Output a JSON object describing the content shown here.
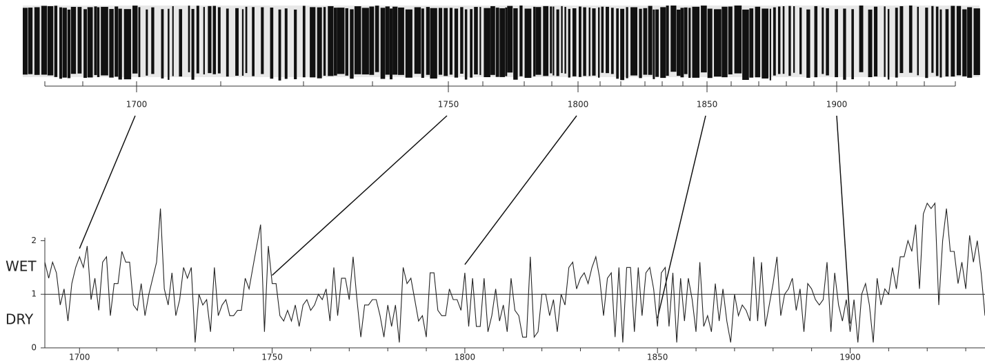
{
  "chart_data": {
    "type": "line",
    "ring_scale_labels": [
      1700,
      1750,
      1800,
      1850,
      1900
    ],
    "annotations": [
      "WET",
      "DRY"
    ],
    "x": [
      1691,
      1692,
      1693,
      1694,
      1695,
      1696,
      1697,
      1698,
      1699,
      1700,
      1701,
      1702,
      1703,
      1704,
      1705,
      1706,
      1707,
      1708,
      1709,
      1710,
      1711,
      1712,
      1713,
      1714,
      1715,
      1716,
      1717,
      1718,
      1719,
      1720,
      1721,
      1722,
      1723,
      1724,
      1725,
      1726,
      1727,
      1728,
      1729,
      1730,
      1731,
      1732,
      1733,
      1734,
      1735,
      1736,
      1737,
      1738,
      1739,
      1740,
      1741,
      1742,
      1743,
      1744,
      1745,
      1746,
      1747,
      1748,
      1749,
      1750,
      1751,
      1752,
      1753,
      1754,
      1755,
      1756,
      1757,
      1758,
      1759,
      1760,
      1761,
      1762,
      1763,
      1764,
      1765,
      1766,
      1767,
      1768,
      1769,
      1770,
      1771,
      1772,
      1773,
      1774,
      1775,
      1776,
      1777,
      1778,
      1779,
      1780,
      1781,
      1782,
      1783,
      1784,
      1785,
      1786,
      1787,
      1788,
      1789,
      1790,
      1791,
      1792,
      1793,
      1794,
      1795,
      1796,
      1797,
      1798,
      1799,
      1800,
      1801,
      1802,
      1803,
      1804,
      1805,
      1806,
      1807,
      1808,
      1809,
      1810,
      1811,
      1812,
      1813,
      1814,
      1815,
      1816,
      1817,
      1818,
      1819,
      1820,
      1821,
      1822,
      1823,
      1824,
      1825,
      1826,
      1827,
      1828,
      1829,
      1830,
      1831,
      1832,
      1833,
      1834,
      1835,
      1836,
      1837,
      1838,
      1839,
      1840,
      1841,
      1842,
      1843,
      1844,
      1845,
      1846,
      1847,
      1848,
      1849,
      1850,
      1851,
      1852,
      1853,
      1854,
      1855,
      1856,
      1857,
      1858,
      1859,
      1860,
      1861,
      1862,
      1863,
      1864,
      1865,
      1866,
      1867,
      1868,
      1869,
      1870,
      1871,
      1872,
      1873,
      1874,
      1875,
      1876,
      1877,
      1878,
      1879,
      1880,
      1881,
      1882,
      1883,
      1884,
      1885,
      1886,
      1887,
      1888,
      1889,
      1890,
      1891,
      1892,
      1893,
      1894,
      1895,
      1896,
      1897,
      1898,
      1899,
      1900,
      1901,
      1902,
      1903,
      1904,
      1905,
      1906,
      1907,
      1908,
      1909,
      1910,
      1911,
      1912,
      1913,
      1914,
      1915,
      1916,
      1917,
      1918,
      1919,
      1920,
      1921,
      1922,
      1923,
      1924,
      1925,
      1926,
      1927,
      1928,
      1929,
      1930,
      1931,
      1932,
      1933,
      1934,
      1935
    ],
    "series": [
      {
        "color": "#222222",
        "values": [
          1.6,
          1.3,
          1.6,
          1.4,
          0.8,
          1.1,
          0.5,
          1.2,
          1.5,
          1.7,
          1.5,
          1.9,
          0.9,
          1.3,
          0.7,
          1.6,
          1.7,
          0.6,
          1.2,
          1.2,
          1.8,
          1.6,
          1.6,
          0.8,
          0.7,
          1.2,
          0.6,
          1.0,
          1.3,
          1.6,
          2.6,
          1.1,
          0.8,
          1.4,
          0.6,
          0.9,
          1.5,
          1.3,
          1.5,
          0.1,
          1.0,
          0.8,
          0.9,
          0.3,
          1.5,
          0.6,
          0.8,
          0.9,
          0.6,
          0.6,
          0.7,
          0.7,
          1.3,
          1.1,
          1.5,
          1.9,
          2.3,
          0.3,
          1.9,
          1.2,
          1.2,
          0.6,
          0.5,
          0.7,
          0.5,
          0.8,
          0.4,
          0.8,
          0.9,
          0.7,
          0.8,
          1.0,
          0.9,
          1.1,
          0.5,
          1.5,
          0.6,
          1.3,
          1.3,
          0.9,
          1.7,
          0.9,
          0.2,
          0.8,
          0.8,
          0.9,
          0.9,
          0.6,
          0.2,
          0.8,
          0.4,
          0.8,
          0.1,
          1.5,
          1.2,
          1.3,
          0.9,
          0.5,
          0.6,
          0.2,
          1.4,
          1.4,
          0.7,
          0.6,
          0.6,
          1.1,
          0.9,
          0.9,
          0.7,
          1.4,
          0.4,
          1.3,
          0.4,
          0.4,
          1.3,
          0.3,
          0.6,
          1.1,
          0.5,
          0.8,
          0.3,
          1.3,
          0.7,
          0.6,
          0.2,
          0.2,
          1.7,
          0.2,
          0.3,
          1.0,
          1.0,
          0.6,
          0.9,
          0.3,
          1.0,
          0.8,
          1.5,
          1.6,
          1.1,
          1.3,
          1.4,
          1.2,
          1.5,
          1.7,
          1.3,
          0.6,
          1.3,
          1.4,
          0.2,
          1.5,
          0.1,
          1.5,
          1.5,
          0.3,
          1.5,
          0.6,
          1.4,
          1.5,
          1.1,
          0.4,
          1.4,
          1.5,
          0.4,
          1.4,
          0.1,
          1.3,
          0.5,
          1.3,
          0.9,
          0.3,
          1.6,
          0.4,
          0.6,
          0.3,
          1.2,
          0.5,
          1.1,
          0.5,
          0.1,
          1.0,
          0.6,
          0.8,
          0.7,
          0.5,
          1.7,
          0.5,
          1.6,
          0.4,
          0.8,
          1.2,
          1.7,
          0.6,
          1.0,
          1.1,
          1.3,
          0.7,
          1.1,
          0.3,
          1.2,
          1.1,
          0.9,
          0.8,
          0.9,
          1.6,
          0.3,
          1.4,
          0.8,
          0.5,
          0.9,
          0.3,
          0.9,
          0.1,
          1.0,
          1.2,
          0.8,
          0.1,
          1.3,
          0.8,
          1.1,
          1.0,
          1.5,
          1.1,
          1.7,
          1.7,
          2.0,
          1.8,
          2.3,
          1.1,
          2.5,
          2.7,
          2.6,
          2.7,
          0.8,
          2.0,
          2.6,
          1.8,
          1.8,
          1.2,
          1.6,
          1.1,
          2.1,
          1.6,
          2.0,
          1.4,
          0.6
        ]
      }
    ],
    "xlim": [
      1691,
      1935
    ],
    "xticks": [
      1700,
      1750,
      1800,
      1850,
      1900
    ],
    "x_minor_ticks": [
      1710,
      1720,
      1730,
      1740,
      1760,
      1770,
      1780,
      1790,
      1810,
      1820,
      1830,
      1840,
      1860,
      1870,
      1880,
      1890,
      1910,
      1920,
      1930
    ],
    "ylim": [
      0,
      2.7
    ],
    "yticks": [
      0,
      1,
      2
    ],
    "reference_line": 1
  }
}
